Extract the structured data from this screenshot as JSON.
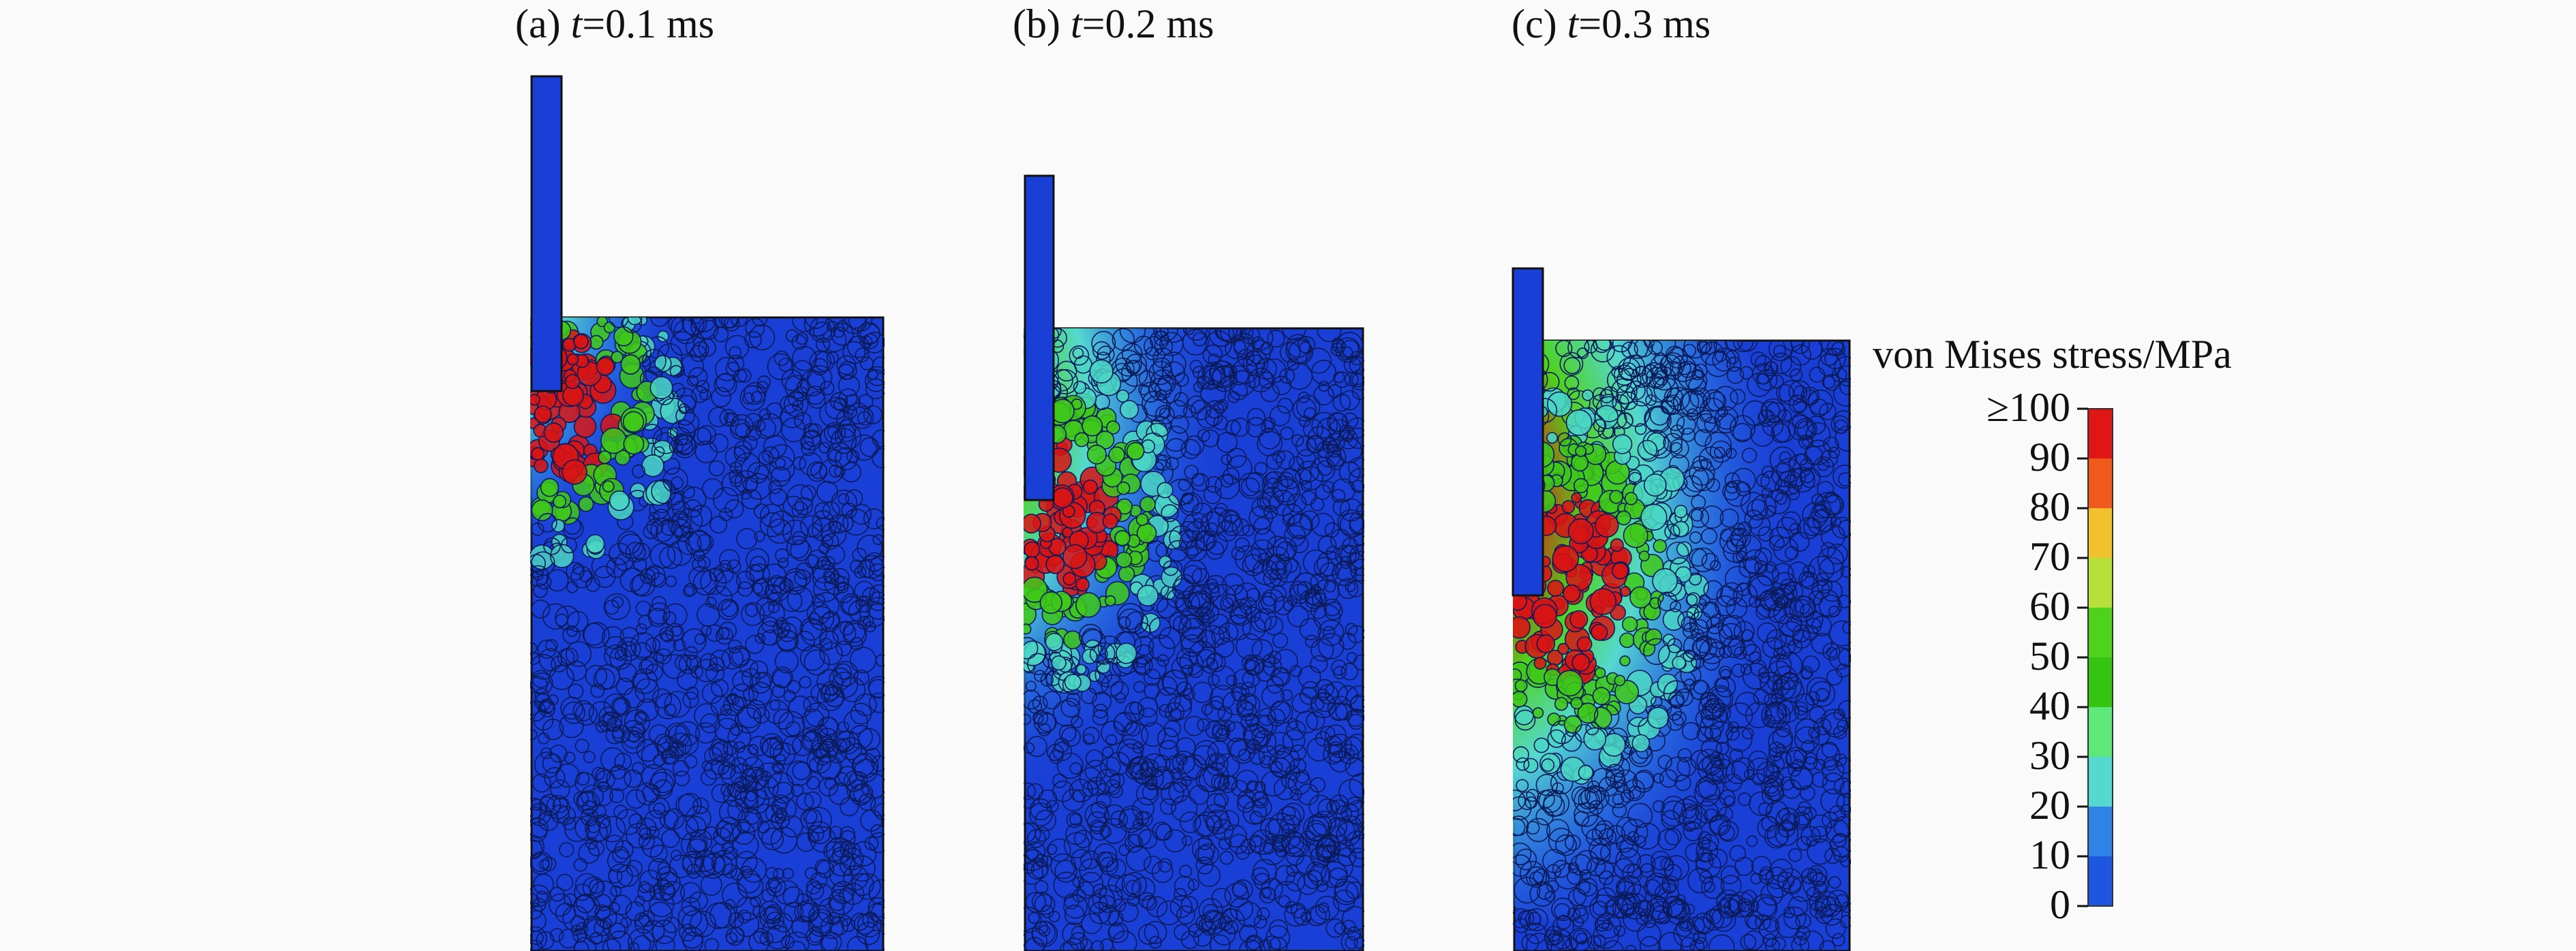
{
  "panels": [
    {
      "prefix": "(a) ",
      "var": "t",
      "rest": "=0.1 ms",
      "time_ms": 0.1
    },
    {
      "prefix": "(b) ",
      "var": "t",
      "rest": "=0.2 ms",
      "time_ms": 0.2
    },
    {
      "prefix": "(c) ",
      "var": "t",
      "rest": "=0.3 ms",
      "time_ms": 0.3
    }
  ],
  "legend": {
    "title": "von Mises stress/MPa",
    "ticks": [
      "≥100",
      "90",
      "80",
      "70",
      "60",
      "50",
      "40",
      "30",
      "20",
      "10",
      "0"
    ],
    "colors": [
      "#e01515",
      "#f05a1c",
      "#f2c12e",
      "#b7e03a",
      "#4fd21c",
      "#35c412",
      "#5fe87a",
      "#55d8cf",
      "#2f82e6",
      "#1f56df",
      "#1238d4"
    ]
  },
  "colors": {
    "background": "#fafafa",
    "base_blue": "#1a3fd6",
    "penetrator": "#1a3fd6"
  }
}
